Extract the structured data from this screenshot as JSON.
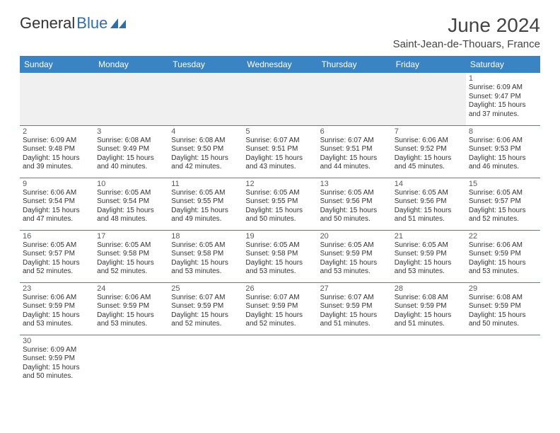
{
  "brand": {
    "part1": "General",
    "part2": "Blue"
  },
  "header": {
    "title": "June 2024",
    "location": "Saint-Jean-de-Thouars, France"
  },
  "colors": {
    "header_bg": "#3b84c4",
    "header_text": "#ffffff",
    "border": "#3b84c4",
    "blank_bg": "#f0f0f0",
    "brand_blue": "#2f6fa8",
    "text_dark": "#333333",
    "text_muted": "#5a5a5a"
  },
  "weekdays": [
    "Sunday",
    "Monday",
    "Tuesday",
    "Wednesday",
    "Thursday",
    "Friday",
    "Saturday"
  ],
  "weeks": [
    [
      null,
      null,
      null,
      null,
      null,
      null,
      {
        "n": "1",
        "sr": "6:09 AM",
        "ss": "9:47 PM",
        "dh": "15",
        "dm": "37"
      }
    ],
    [
      {
        "n": "2",
        "sr": "6:09 AM",
        "ss": "9:48 PM",
        "dh": "15",
        "dm": "39"
      },
      {
        "n": "3",
        "sr": "6:08 AM",
        "ss": "9:49 PM",
        "dh": "15",
        "dm": "40"
      },
      {
        "n": "4",
        "sr": "6:08 AM",
        "ss": "9:50 PM",
        "dh": "15",
        "dm": "42"
      },
      {
        "n": "5",
        "sr": "6:07 AM",
        "ss": "9:51 PM",
        "dh": "15",
        "dm": "43"
      },
      {
        "n": "6",
        "sr": "6:07 AM",
        "ss": "9:51 PM",
        "dh": "15",
        "dm": "44"
      },
      {
        "n": "7",
        "sr": "6:06 AM",
        "ss": "9:52 PM",
        "dh": "15",
        "dm": "45"
      },
      {
        "n": "8",
        "sr": "6:06 AM",
        "ss": "9:53 PM",
        "dh": "15",
        "dm": "46"
      }
    ],
    [
      {
        "n": "9",
        "sr": "6:06 AM",
        "ss": "9:54 PM",
        "dh": "15",
        "dm": "47"
      },
      {
        "n": "10",
        "sr": "6:05 AM",
        "ss": "9:54 PM",
        "dh": "15",
        "dm": "48"
      },
      {
        "n": "11",
        "sr": "6:05 AM",
        "ss": "9:55 PM",
        "dh": "15",
        "dm": "49"
      },
      {
        "n": "12",
        "sr": "6:05 AM",
        "ss": "9:55 PM",
        "dh": "15",
        "dm": "50"
      },
      {
        "n": "13",
        "sr": "6:05 AM",
        "ss": "9:56 PM",
        "dh": "15",
        "dm": "50"
      },
      {
        "n": "14",
        "sr": "6:05 AM",
        "ss": "9:56 PM",
        "dh": "15",
        "dm": "51"
      },
      {
        "n": "15",
        "sr": "6:05 AM",
        "ss": "9:57 PM",
        "dh": "15",
        "dm": "52"
      }
    ],
    [
      {
        "n": "16",
        "sr": "6:05 AM",
        "ss": "9:57 PM",
        "dh": "15",
        "dm": "52"
      },
      {
        "n": "17",
        "sr": "6:05 AM",
        "ss": "9:58 PM",
        "dh": "15",
        "dm": "52"
      },
      {
        "n": "18",
        "sr": "6:05 AM",
        "ss": "9:58 PM",
        "dh": "15",
        "dm": "53"
      },
      {
        "n": "19",
        "sr": "6:05 AM",
        "ss": "9:58 PM",
        "dh": "15",
        "dm": "53"
      },
      {
        "n": "20",
        "sr": "6:05 AM",
        "ss": "9:59 PM",
        "dh": "15",
        "dm": "53"
      },
      {
        "n": "21",
        "sr": "6:05 AM",
        "ss": "9:59 PM",
        "dh": "15",
        "dm": "53"
      },
      {
        "n": "22",
        "sr": "6:06 AM",
        "ss": "9:59 PM",
        "dh": "15",
        "dm": "53"
      }
    ],
    [
      {
        "n": "23",
        "sr": "6:06 AM",
        "ss": "9:59 PM",
        "dh": "15",
        "dm": "53"
      },
      {
        "n": "24",
        "sr": "6:06 AM",
        "ss": "9:59 PM",
        "dh": "15",
        "dm": "53"
      },
      {
        "n": "25",
        "sr": "6:07 AM",
        "ss": "9:59 PM",
        "dh": "15",
        "dm": "52"
      },
      {
        "n": "26",
        "sr": "6:07 AM",
        "ss": "9:59 PM",
        "dh": "15",
        "dm": "52"
      },
      {
        "n": "27",
        "sr": "6:07 AM",
        "ss": "9:59 PM",
        "dh": "15",
        "dm": "51"
      },
      {
        "n": "28",
        "sr": "6:08 AM",
        "ss": "9:59 PM",
        "dh": "15",
        "dm": "51"
      },
      {
        "n": "29",
        "sr": "6:08 AM",
        "ss": "9:59 PM",
        "dh": "15",
        "dm": "50"
      }
    ],
    [
      {
        "n": "30",
        "sr": "6:09 AM",
        "ss": "9:59 PM",
        "dh": "15",
        "dm": "50"
      },
      null,
      null,
      null,
      null,
      null,
      null
    ]
  ],
  "labels": {
    "sunrise": "Sunrise: ",
    "sunset": "Sunset: ",
    "daylight1": "Daylight: ",
    "daylight2": " hours and ",
    "daylight3": " minutes."
  }
}
